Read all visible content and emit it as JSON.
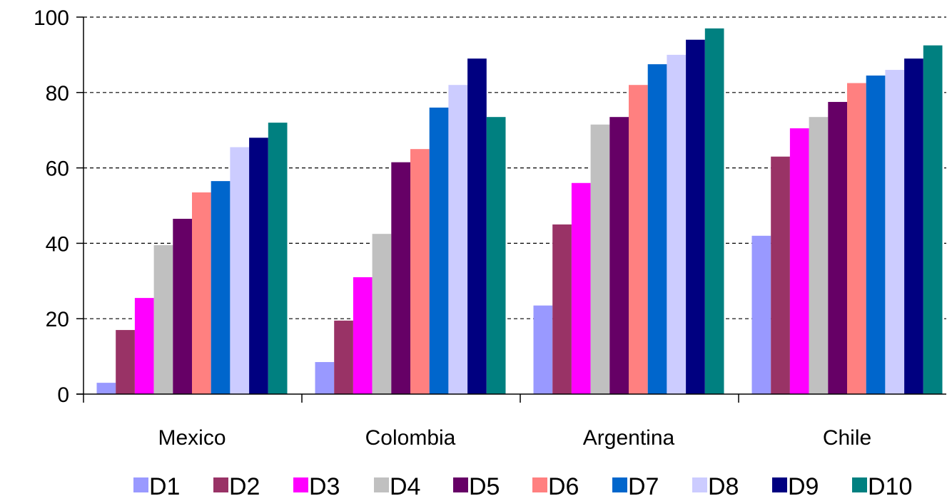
{
  "chart_data": {
    "type": "bar",
    "categories": [
      "Mexico",
      "Colombia",
      "Argentina",
      "Chile"
    ],
    "series": [
      {
        "name": "D1",
        "color": "#9999ff",
        "values": [
          3,
          8.5,
          23.5,
          42
        ]
      },
      {
        "name": "D2",
        "color": "#993366",
        "values": [
          17,
          19.5,
          45,
          63
        ]
      },
      {
        "name": "D3",
        "color": "#ff00ff",
        "values": [
          25.5,
          31,
          56,
          70.5
        ]
      },
      {
        "name": "D4",
        "color": "#c0c0c0",
        "values": [
          39.5,
          42.5,
          71.5,
          73.5
        ]
      },
      {
        "name": "D5",
        "color": "#660066",
        "values": [
          46.5,
          61.5,
          73.5,
          77.5
        ]
      },
      {
        "name": "D6",
        "color": "#ff8080",
        "values": [
          53.5,
          65,
          82,
          82.5
        ]
      },
      {
        "name": "D7",
        "color": "#0066cc",
        "values": [
          56.5,
          76,
          87.5,
          84.5
        ]
      },
      {
        "name": "D8",
        "color": "#ccccff",
        "values": [
          65.5,
          82,
          90,
          86
        ]
      },
      {
        "name": "D9",
        "color": "#000080",
        "values": [
          68,
          89,
          94,
          89
        ]
      },
      {
        "name": "D10",
        "color": "#008080",
        "values": [
          72,
          73.5,
          97,
          92.5
        ]
      }
    ],
    "title": "",
    "xlabel": "",
    "ylabel": "",
    "ylim": [
      0,
      100
    ],
    "yticks": [
      "0",
      "20",
      "40",
      "60",
      "80",
      "100"
    ],
    "grid": "horizontal-dashed",
    "legend": "bottom"
  }
}
